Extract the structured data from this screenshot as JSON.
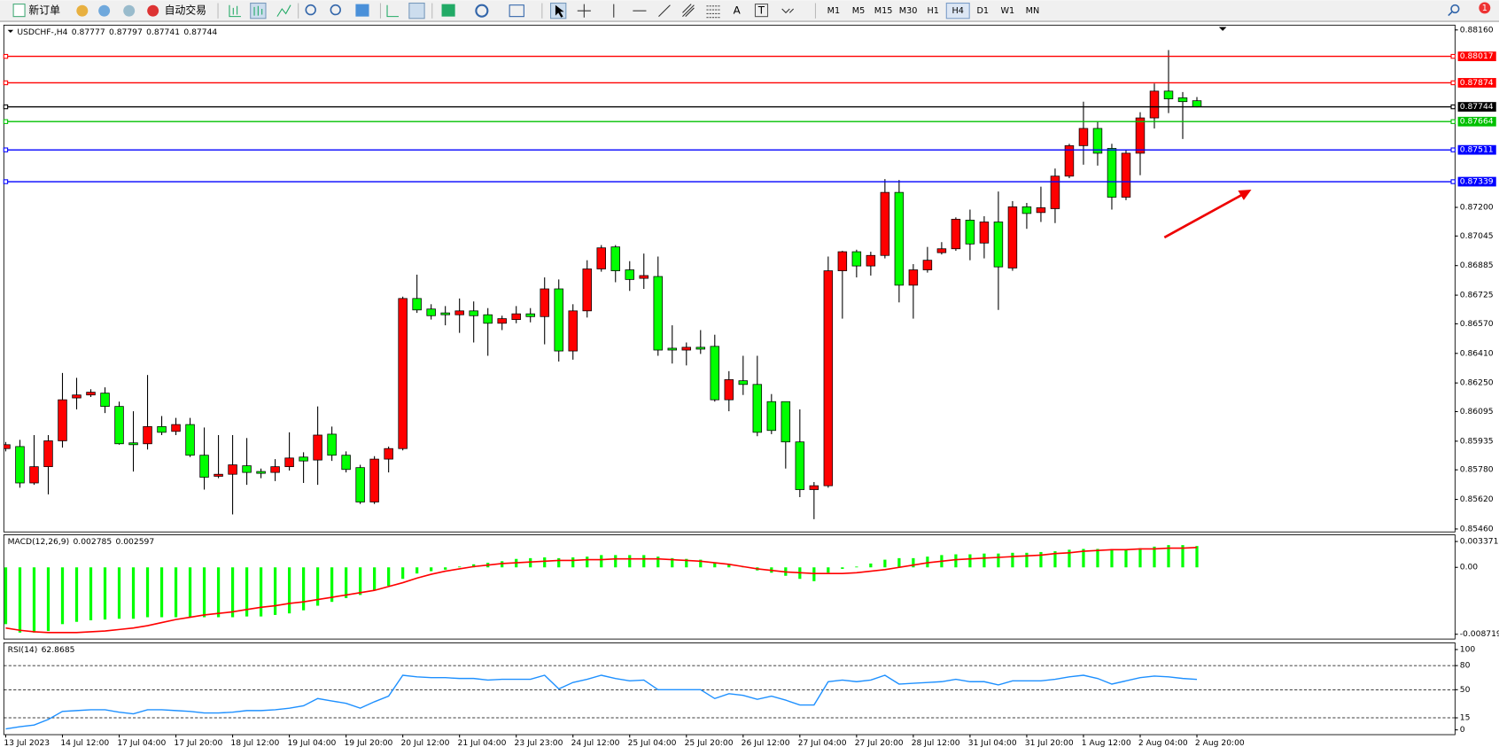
{
  "toolbar": {
    "new_order": "新订单",
    "auto_trading": "自动交易",
    "text_tools": [
      "A",
      "T"
    ],
    "timeframes": [
      {
        "label": "M1"
      },
      {
        "label": "M5"
      },
      {
        "label": "M15"
      },
      {
        "label": "M30"
      },
      {
        "label": "H1"
      },
      {
        "label": "H4",
        "active": true
      },
      {
        "label": "D1"
      },
      {
        "label": "W1"
      },
      {
        "label": "MN"
      }
    ],
    "notifications": 1
  },
  "chart_data": [
    {
      "type": "candlestick",
      "symbol": "USDCHF-,H4",
      "up_color": "#ff0000",
      "down_color": "#00ff00",
      "ylim": [
        0.85444,
        0.88186
      ],
      "yticks": [
        {
          "value": 0.8816,
          "label": "0.88160"
        },
        {
          "value": 0.872,
          "label": "0.87200"
        },
        0.87045,
        0.86885,
        0.86725,
        {
          "value": 0.8657,
          "label": "0.86570"
        },
        {
          "value": 0.8641,
          "label": "0.86410"
        },
        {
          "value": 0.8625,
          "label": "0.86250"
        },
        0.86095,
        0.85935,
        {
          "value": 0.8578,
          "label": "0.85780"
        },
        {
          "value": 0.8562,
          "label": "0.85620"
        },
        {
          "value": 0.8546,
          "label": "0.85460"
        }
      ],
      "hlines": [
        {
          "value": 0.88017,
          "color": "#ff0000"
        },
        {
          "value": 0.87874,
          "color": "#ff0000"
        },
        {
          "value": 0.87744,
          "color": "#000000"
        },
        {
          "value": 0.87664,
          "color": "#00c000"
        },
        {
          "value": 0.87511,
          "color": "#0000ff"
        },
        {
          "value": 0.87339,
          "color": "#0000ff"
        }
      ],
      "x_labels": [
        "13 Jul 2023",
        "14 Jul 12:00",
        "17 Jul 04:00",
        "17 Jul 20:00",
        "18 Jul 12:00",
        "19 Jul 04:00",
        "19 Jul 20:00",
        "20 Jul 12:00",
        "21 Jul 04:00",
        "23 Jul 23:00",
        "24 Jul 12:00",
        "25 Jul 04:00",
        "25 Jul 20:00",
        "26 Jul 12:00",
        "27 Jul 04:00",
        "27 Jul 20:00",
        "28 Jul 12:00",
        "31 Jul 04:00",
        "31 Jul 20:00",
        "1 Aug 12:00",
        "2 Aug 04:00",
        "2 Aug 20:00"
      ],
      "candles": [
        [
          0.85895,
          0.85931,
          0.8588,
          0.85916
        ],
        [
          0.85906,
          0.85942,
          0.85683,
          0.85709
        ],
        [
          0.85709,
          0.85968,
          0.85699,
          0.85797
        ],
        [
          0.85797,
          0.85968,
          0.85647,
          0.85937
        ],
        [
          0.85937,
          0.86304,
          0.859,
          0.86159
        ],
        [
          0.86169,
          0.86278,
          0.86107,
          0.86185
        ],
        [
          0.86185,
          0.86216,
          0.86174,
          0.862
        ],
        [
          0.86195,
          0.86226,
          0.86087,
          0.86123
        ],
        [
          0.86123,
          0.86149,
          0.85916,
          0.85921
        ],
        [
          0.85926,
          0.86097,
          0.85771,
          0.85916
        ],
        [
          0.85921,
          0.86293,
          0.8589,
          0.86014
        ],
        [
          0.86014,
          0.86071,
          0.85968,
          0.85983
        ],
        [
          0.85988,
          0.86061,
          0.85968,
          0.86025
        ],
        [
          0.86025,
          0.86061,
          0.85849,
          0.85859
        ],
        [
          0.85859,
          0.86009,
          0.85673,
          0.8574
        ],
        [
          0.85745,
          0.85968,
          0.85735,
          0.85756
        ],
        [
          0.85756,
          0.85968,
          0.85539,
          0.85807
        ],
        [
          0.85802,
          0.85952,
          0.85699,
          0.85766
        ],
        [
          0.85771,
          0.85787,
          0.85735,
          0.85761
        ],
        [
          0.85766,
          0.85838,
          0.85719,
          0.85797
        ],
        [
          0.85797,
          0.85983,
          0.85776,
          0.85844
        ],
        [
          0.85849,
          0.85875,
          0.85709,
          0.85828
        ],
        [
          0.85833,
          0.86123,
          0.85699,
          0.85968
        ],
        [
          0.85973,
          0.86014,
          0.85828,
          0.85859
        ],
        [
          0.85859,
          0.8588,
          0.85766,
          0.85782
        ],
        [
          0.85792,
          0.85807,
          0.85595,
          0.85606
        ],
        [
          0.85606,
          0.85854,
          0.85595,
          0.85838
        ],
        [
          0.85838,
          0.85906,
          0.85766,
          0.85895
        ],
        [
          0.85895,
          0.86717,
          0.85885,
          0.86707
        ],
        [
          0.86707,
          0.86836,
          0.86629,
          0.86645
        ],
        [
          0.8665,
          0.86676,
          0.86593,
          0.86614
        ],
        [
          0.86629,
          0.86666,
          0.86562,
          0.86619
        ],
        [
          0.86619,
          0.86707,
          0.86521,
          0.8664
        ],
        [
          0.8664,
          0.86691,
          0.86469,
          0.86614
        ],
        [
          0.86619,
          0.86655,
          0.86397,
          0.86573
        ],
        [
          0.86573,
          0.86614,
          0.86536,
          0.86598
        ],
        [
          0.86593,
          0.86666,
          0.86573,
          0.86624
        ],
        [
          0.86624,
          0.86655,
          0.86578,
          0.86609
        ],
        [
          0.86609,
          0.86821,
          0.86459,
          0.86759
        ],
        [
          0.86759,
          0.8681,
          0.86366,
          0.86423
        ],
        [
          0.86423,
          0.86676,
          0.86376,
          0.8664
        ],
        [
          0.8664,
          0.86914,
          0.86604,
          0.86867
        ],
        [
          0.86867,
          0.86996,
          0.86852,
          0.86981
        ],
        [
          0.86986,
          0.86996,
          0.86795,
          0.86857
        ],
        [
          0.86862,
          0.86909,
          0.86748,
          0.8681
        ],
        [
          0.86816,
          0.8695,
          0.86759,
          0.86831
        ],
        [
          0.86826,
          0.86934,
          0.86397,
          0.86428
        ],
        [
          0.86438,
          0.86562,
          0.86355,
          0.86428
        ],
        [
          0.86428,
          0.86469,
          0.86345,
          0.86443
        ],
        [
          0.86443,
          0.86536,
          0.86407,
          0.86433
        ],
        [
          0.86448,
          0.86511,
          0.86149,
          0.86159
        ],
        [
          0.86159,
          0.86314,
          0.86097,
          0.86268
        ],
        [
          0.86262,
          0.86397,
          0.86185,
          0.86242
        ],
        [
          0.86242,
          0.86397,
          0.85962,
          0.85983
        ],
        [
          0.86149,
          0.8619,
          0.85973,
          0.85993
        ],
        [
          0.86149,
          0.86149,
          0.85787,
          0.85931
        ],
        [
          0.85931,
          0.86107,
          0.85632,
          0.85673
        ],
        [
          0.85673,
          0.85714,
          0.85513,
          0.85694
        ],
        [
          0.85694,
          0.86934,
          0.85683,
          0.86857
        ],
        [
          0.86857,
          0.86965,
          0.86598,
          0.8696
        ],
        [
          0.8696,
          0.86971,
          0.86821,
          0.86883
        ],
        [
          0.86883,
          0.8696,
          0.86831,
          0.8694
        ],
        [
          0.8694,
          0.87353,
          0.86924,
          0.87281
        ],
        [
          0.87281,
          0.87348,
          0.86686,
          0.86779
        ],
        [
          0.86779,
          0.86893,
          0.86598,
          0.86862
        ],
        [
          0.86862,
          0.86986,
          0.86847,
          0.86914
        ],
        [
          0.86955,
          0.87012,
          0.86945,
          0.86976
        ],
        [
          0.86976,
          0.87146,
          0.86965,
          0.87136
        ],
        [
          0.87131,
          0.87188,
          0.86914,
          0.87002
        ],
        [
          0.87007,
          0.87152,
          0.86924,
          0.87121
        ],
        [
          0.87121,
          0.87286,
          0.86645,
          0.86878
        ],
        [
          0.86872,
          0.87234,
          0.86857,
          0.87203
        ],
        [
          0.87203,
          0.87224,
          0.87084,
          0.87167
        ],
        [
          0.87172,
          0.87312,
          0.87121,
          0.87198
        ],
        [
          0.87193,
          0.8741,
          0.87115,
          0.87369
        ],
        [
          0.87369,
          0.87544,
          0.87358,
          0.87534
        ],
        [
          0.87534,
          0.87772,
          0.87431,
          0.87627
        ],
        [
          0.87627,
          0.87663,
          0.87426,
          0.87493
        ],
        [
          0.87519,
          0.87544,
          0.87188,
          0.87255
        ],
        [
          0.87255,
          0.87513,
          0.87239,
          0.87493
        ],
        [
          0.87493,
          0.87715,
          0.87374,
          0.87684
        ],
        [
          0.87684,
          0.8787,
          0.87627,
          0.87829
        ],
        [
          0.87829,
          0.88051,
          0.8771,
          0.87787
        ],
        [
          0.87793,
          0.87824,
          0.8757,
          0.87772
        ],
        [
          0.87777,
          0.87797,
          0.87741,
          0.87744
        ]
      ]
    },
    {
      "type": "macd",
      "name": "MACD(12,26,9)",
      "hist_color": "#00ff00",
      "signal_color": "#ff0000",
      "ylim": [
        -0.008719,
        0.003371
      ],
      "yticks": [
        0.003371,
        {
          "value": 0,
          "label": "0.00"
        },
        -0.008719
      ],
      "histogram": [
        -0.0074,
        -0.0085,
        -0.0085,
        -0.0083,
        -0.0074,
        -0.0071,
        -0.0069,
        -0.0068,
        -0.0067,
        -0.0067,
        -0.0065,
        -0.0065,
        -0.0065,
        -0.0065,
        -0.0065,
        -0.0065,
        -0.0065,
        -0.0064,
        -0.0064,
        -0.0062,
        -0.006,
        -0.0056,
        -0.005,
        -0.0045,
        -0.004,
        -0.0036,
        -0.003,
        -0.0024,
        -0.0015,
        -0.0008,
        -0.0005,
        -0.0003,
        0.0001,
        0.0004,
        0.0006,
        0.0008,
        0.0011,
        0.0012,
        0.0013,
        0.0012,
        0.0013,
        0.0014,
        0.0016,
        0.0016,
        0.0016,
        0.0016,
        0.0014,
        0.0012,
        0.0011,
        0.001,
        0.0006,
        0.0004,
        0.0001,
        -0.0004,
        -0.0007,
        -0.0011,
        -0.0015,
        -0.0018,
        -0.0007,
        -0.0002,
        0.0001,
        0.0005,
        0.001,
        0.0012,
        0.0012,
        0.0014,
        0.0016,
        0.0017,
        0.0017,
        0.0018,
        0.0018,
        0.0019,
        0.0019,
        0.002,
        0.0021,
        0.0023,
        0.0024,
        0.0024,
        0.0024,
        0.0024,
        0.0025,
        0.0027,
        0.0029,
        0.0029,
        0.002785
      ],
      "signal": [
        -0.0079,
        -0.0082,
        -0.0084,
        -0.0085,
        -0.0085,
        -0.0085,
        -0.0084,
        -0.0083,
        -0.0081,
        -0.0079,
        -0.0076,
        -0.0072,
        -0.0068,
        -0.0065,
        -0.0062,
        -0.006,
        -0.0058,
        -0.0055,
        -0.0052,
        -0.005,
        -0.0047,
        -0.0045,
        -0.0042,
        -0.0039,
        -0.0036,
        -0.0033,
        -0.003,
        -0.0025,
        -0.002,
        -0.0014,
        -0.0009,
        -0.0005,
        -0.0002,
        0.0001,
        0.0003,
        0.0005,
        0.0006,
        0.0007,
        0.0008,
        0.0009,
        0.0009,
        0.001,
        0.001,
        0.0011,
        0.0011,
        0.0011,
        0.0011,
        0.001,
        0.0009,
        0.0008,
        0.0006,
        0.0004,
        0.0001,
        -0.0002,
        -0.0004,
        -0.0006,
        -0.0007,
        -0.0008,
        -0.0008,
        -0.0008,
        -0.0007,
        -0.0005,
        -0.0003,
        0,
        0.0003,
        0.0006,
        0.0008,
        0.001,
        0.0011,
        0.0012,
        0.0013,
        0.0014,
        0.0015,
        0.0016,
        0.0018,
        0.0019,
        0.0021,
        0.0022,
        0.0023,
        0.0023,
        0.0024,
        0.0024,
        0.0025,
        0.0025,
        0.002597
      ]
    },
    {
      "type": "rsi",
      "name": "RSI(14)",
      "color": "#1e90ff",
      "ylim": [
        0,
        100
      ],
      "yticks": [
        100,
        80,
        50,
        15,
        0
      ],
      "levels": [
        80,
        50,
        15
      ],
      "values": [
        1.2,
        4,
        6,
        13,
        23,
        24,
        25,
        25,
        22,
        20,
        25,
        25,
        24,
        23,
        21,
        21,
        22,
        24,
        24,
        25,
        27,
        30,
        39,
        36,
        33,
        27,
        35,
        42,
        68,
        66,
        65,
        65,
        64,
        64,
        62,
        63,
        63,
        63,
        68,
        51,
        59,
        63,
        68,
        64,
        61,
        62,
        50,
        50,
        50,
        50,
        39,
        45,
        43,
        38,
        42,
        37,
        31,
        31,
        60,
        62,
        60,
        62,
        68,
        57,
        58,
        59,
        60,
        63,
        60,
        60,
        56,
        61,
        61,
        61,
        63,
        66,
        68,
        64,
        57,
        61,
        65,
        67,
        66,
        64,
        62.8685
      ]
    }
  ]
}
